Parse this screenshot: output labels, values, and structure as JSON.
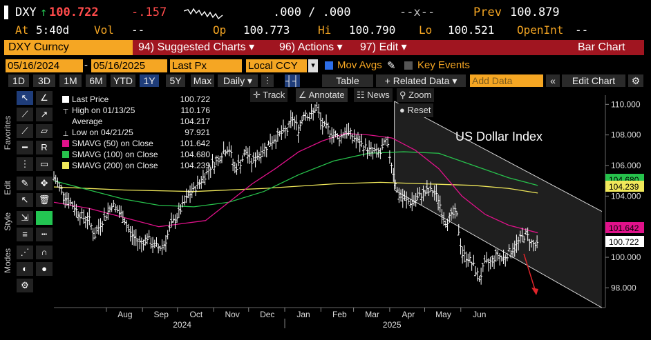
{
  "quote": {
    "symbol": "DXY",
    "arrow": "↑",
    "last": "100.722",
    "change": "-.157",
    "bid_ask": ".000 / .000",
    "size": "--x--",
    "prev_label": "Prev",
    "prev": "100.879",
    "at_label": "At",
    "at": "5:40d",
    "vol_label": "Vol",
    "vol": "--",
    "op_label": "Op",
    "op": "100.773",
    "hi_label": "Hi",
    "hi": "100.790",
    "lo_label": "Lo",
    "lo": "100.521",
    "oi_label": "OpenInt",
    "oi": "--"
  },
  "menubar": {
    "ticker": "DXY Curncy",
    "suggested": "94) Suggested Charts ▾",
    "actions": "96) Actions ▾",
    "edit": "97) Edit ▾",
    "chart_type": "Bar Chart"
  },
  "params": {
    "start": "05/16/2024",
    "end": "05/16/2025",
    "field": "Last Px",
    "ccy": "Local CCY",
    "mov_avgs": "Mov Avgs",
    "key_events": "Key Events"
  },
  "periods": [
    "1D",
    "3D",
    "1M",
    "6M",
    "YTD",
    "1Y",
    "5Y",
    "Max"
  ],
  "selected_period": "1Y",
  "toolbar": {
    "freq": "Daily ▾",
    "table": "Table",
    "related": "+ Related Data ▾",
    "add_data": "Add Data",
    "edit_chart": "Edit Chart"
  },
  "chart_tools": {
    "track": "Track",
    "annotate": "Annotate",
    "news": "News",
    "zoom": "Zoom",
    "reset": "Reset"
  },
  "side_labels": {
    "favorites": "Favorites",
    "edit": "Edit",
    "style": "Style",
    "modes": "Modes"
  },
  "legend": [
    {
      "label": "Last Price",
      "value": "100.722",
      "color": "#ffffff"
    },
    {
      "label": "High on 01/13/25",
      "value": "110.176",
      "color": ""
    },
    {
      "label": "Average",
      "value": "104.217",
      "color": ""
    },
    {
      "label": "Low on 04/21/25",
      "value": "97.921",
      "color": ""
    },
    {
      "label": "SMAVG (50)  on Close",
      "value": "101.642",
      "color": "#e0118a"
    },
    {
      "label": "SMAVG (100)  on Close",
      "value": "104.680",
      "color": "#27c24c"
    },
    {
      "label": "SMAVG (200)  on Close",
      "value": "104.239",
      "color": "#f0e85a"
    }
  ],
  "chart_data": {
    "type": "bar",
    "title": "US Dollar Index",
    "y_ticks": [
      "110.000",
      "108.000",
      "106.000",
      "104.000",
      "102.000",
      "100.000",
      "98.000"
    ],
    "ylim": [
      96.8,
      110.6
    ],
    "x_months": [
      "Aug",
      "Sep",
      "Oct",
      "Nov",
      "Dec",
      "Jan",
      "Feb",
      "Mar",
      "Apr",
      "May",
      "Jun"
    ],
    "x_years": [
      "2024",
      "2025"
    ],
    "price_tags": [
      {
        "value": "104.680",
        "color": "#27c24c"
      },
      {
        "value": "104.239",
        "color": "#f0e85a"
      },
      {
        "value": "101.642",
        "color": "#e0118a"
      },
      {
        "value": "100.722",
        "color": "#ffffff"
      }
    ],
    "price": [
      [
        0,
        105.2
      ],
      [
        5,
        104.6
      ],
      [
        10,
        104.0
      ],
      [
        15,
        103.5
      ],
      [
        20,
        103.0
      ],
      [
        25,
        102.6
      ],
      [
        30,
        102.5
      ],
      [
        35,
        101.4
      ],
      [
        40,
        102.2
      ],
      [
        45,
        102.8
      ],
      [
        50,
        103.5
      ],
      [
        55,
        103.0
      ],
      [
        60,
        102.6
      ],
      [
        65,
        101.6
      ],
      [
        70,
        101.2
      ],
      [
        75,
        100.9
      ],
      [
        80,
        101.3
      ],
      [
        85,
        100.8
      ],
      [
        90,
        100.6
      ],
      [
        95,
        100.9
      ],
      [
        100,
        102.0
      ],
      [
        105,
        102.6
      ],
      [
        110,
        103.3
      ],
      [
        115,
        104.0
      ],
      [
        120,
        104.4
      ],
      [
        125,
        104.9
      ],
      [
        130,
        105.4
      ],
      [
        135,
        106.0
      ],
      [
        140,
        106.3
      ],
      [
        145,
        106.9
      ],
      [
        150,
        107.2
      ],
      [
        155,
        105.8
      ],
      [
        160,
        106.2
      ],
      [
        165,
        106.9
      ],
      [
        170,
        106.2
      ],
      [
        175,
        106.7
      ],
      [
        180,
        107.0
      ],
      [
        185,
        107.5
      ],
      [
        190,
        107.8
      ],
      [
        195,
        108.1
      ],
      [
        200,
        108.3
      ],
      [
        205,
        109.1
      ],
      [
        210,
        108.3
      ],
      [
        215,
        109.6
      ],
      [
        220,
        109.1
      ],
      [
        225,
        109.9
      ],
      [
        230,
        108.6
      ],
      [
        235,
        108.4
      ],
      [
        240,
        108.0
      ],
      [
        245,
        107.8
      ],
      [
        250,
        108.3
      ],
      [
        255,
        108.0
      ],
      [
        260,
        107.6
      ],
      [
        265,
        107.3
      ],
      [
        270,
        107.0
      ],
      [
        275,
        106.9
      ],
      [
        280,
        106.8
      ],
      [
        285,
        107.6
      ],
      [
        290,
        106.0
      ],
      [
        295,
        104.1
      ],
      [
        300,
        103.8
      ],
      [
        305,
        103.6
      ],
      [
        310,
        103.7
      ],
      [
        315,
        104.1
      ],
      [
        320,
        104.3
      ],
      [
        325,
        104.3
      ],
      [
        330,
        103.8
      ],
      [
        335,
        102.3
      ],
      [
        340,
        102.6
      ],
      [
        345,
        103.0
      ],
      [
        350,
        100.2
      ],
      [
        355,
        100.0
      ],
      [
        360,
        99.4
      ],
      [
        365,
        98.6
      ],
      [
        370,
        99.6
      ],
      [
        375,
        99.7
      ],
      [
        380,
        100.2
      ],
      [
        385,
        99.9
      ],
      [
        390,
        100.3
      ],
      [
        395,
        100.6
      ],
      [
        400,
        101.2
      ],
      [
        405,
        101.5
      ],
      [
        410,
        100.9
      ],
      [
        415,
        100.72
      ]
    ],
    "sma50": [
      [
        0,
        103.6
      ],
      [
        30,
        103.2
      ],
      [
        60,
        102.6
      ],
      [
        90,
        102.0
      ],
      [
        110,
        102.2
      ],
      [
        130,
        102.4
      ],
      [
        150,
        103.6
      ],
      [
        170,
        104.8
      ],
      [
        190,
        105.8
      ],
      [
        210,
        106.9
      ],
      [
        230,
        107.6
      ],
      [
        250,
        108.1
      ],
      [
        270,
        108.0
      ],
      [
        290,
        107.8
      ],
      [
        310,
        107.0
      ],
      [
        330,
        105.8
      ],
      [
        350,
        104.0
      ],
      [
        370,
        102.8
      ],
      [
        390,
        102.1
      ],
      [
        415,
        101.6
      ]
    ],
    "sma100": [
      [
        0,
        105.0
      ],
      [
        30,
        104.4
      ],
      [
        60,
        103.8
      ],
      [
        90,
        103.4
      ],
      [
        120,
        103.3
      ],
      [
        150,
        103.6
      ],
      [
        180,
        104.3
      ],
      [
        210,
        105.4
      ],
      [
        240,
        106.3
      ],
      [
        270,
        106.8
      ],
      [
        300,
        106.9
      ],
      [
        330,
        106.8
      ],
      [
        360,
        106.0
      ],
      [
        390,
        105.2
      ],
      [
        415,
        104.7
      ]
    ],
    "sma200": [
      [
        0,
        104.6
      ],
      [
        60,
        104.4
      ],
      [
        120,
        104.3
      ],
      [
        180,
        104.5
      ],
      [
        240,
        104.8
      ],
      [
        280,
        104.9
      ],
      [
        320,
        104.8
      ],
      [
        360,
        104.7
      ],
      [
        390,
        104.5
      ],
      [
        415,
        104.2
      ]
    ]
  }
}
